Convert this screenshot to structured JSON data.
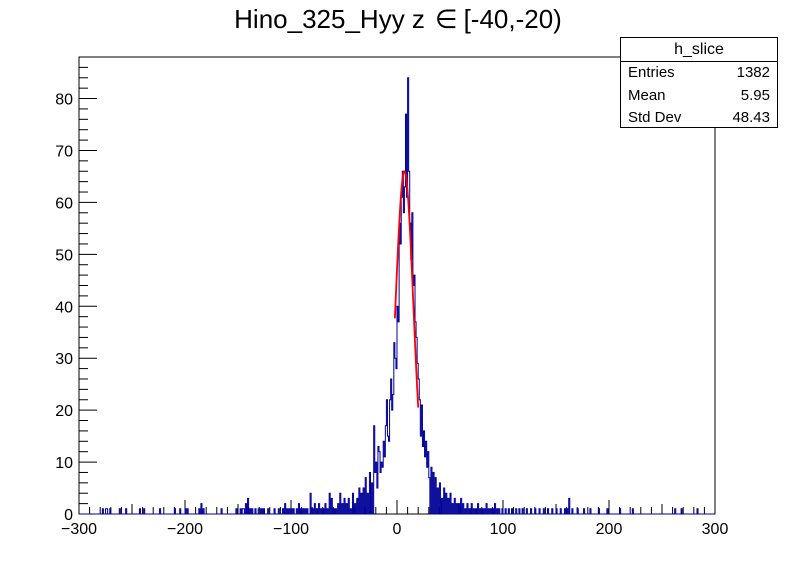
{
  "title": {
    "text": "Hino_325_Hyy z",
    "symbol": "∈",
    "range": "[-40,-20)"
  },
  "stats": {
    "name": "h_slice",
    "rows": [
      {
        "label": "Entries",
        "value": "1382"
      },
      {
        "label": "Mean",
        "value": "5.95"
      },
      {
        "label": "Std Dev",
        "value": "48.43"
      }
    ]
  },
  "colors": {
    "histogram": "#000099",
    "fit": "#ff0000",
    "axes": "#000000"
  },
  "chart_data": {
    "type": "histogram",
    "title": "Hino_325_Hyy z ∈ [-40,-20)",
    "xlabel": "",
    "ylabel": "",
    "xlim": [
      -300,
      300
    ],
    "ylim": [
      0,
      88
    ],
    "x_ticks": [
      -300,
      -200,
      -100,
      0,
      100,
      200,
      300
    ],
    "y_ticks": [
      0,
      10,
      20,
      30,
      40,
      50,
      60,
      70,
      80
    ],
    "bin_width": 1,
    "sparse_bins": [
      [
        -278,
        1
      ],
      [
        -275,
        1
      ],
      [
        -274,
        1
      ],
      [
        -271,
        1
      ],
      [
        -262,
        1
      ],
      [
        -256,
        1
      ],
      [
        -243,
        1
      ],
      [
        -239,
        1
      ],
      [
        -224,
        1
      ],
      [
        -210,
        1
      ],
      [
        -205,
        1
      ],
      [
        -200,
        1
      ],
      [
        -198,
        1
      ],
      [
        -187,
        1
      ],
      [
        -185,
        2
      ],
      [
        -183,
        1
      ],
      [
        -166,
        1
      ],
      [
        -152,
        1
      ],
      [
        -148,
        1
      ],
      [
        -146,
        1
      ],
      [
        -145,
        1
      ],
      [
        -143,
        2
      ],
      [
        -141,
        3
      ],
      [
        -139,
        1
      ],
      [
        -137,
        1
      ],
      [
        -134,
        1
      ],
      [
        -131,
        1
      ],
      [
        -130,
        1
      ],
      [
        -128,
        1
      ],
      [
        -126,
        1
      ],
      [
        -122,
        1
      ],
      [
        -116,
        1
      ],
      [
        -112,
        1
      ],
      [
        -108,
        1
      ],
      [
        -106,
        2
      ],
      [
        -104,
        1
      ],
      [
        -102,
        1
      ],
      [
        -100,
        1
      ],
      [
        -98,
        1
      ],
      [
        -95,
        1
      ],
      [
        -93,
        2
      ],
      [
        -91,
        1
      ],
      [
        -89,
        1
      ],
      [
        -87,
        1
      ],
      [
        -85,
        1
      ],
      [
        -82,
        4
      ],
      [
        -80,
        1
      ],
      [
        -78,
        2
      ],
      [
        -76,
        1
      ],
      [
        -74,
        2
      ],
      [
        -72,
        1
      ],
      [
        -70,
        1
      ],
      [
        -68,
        2
      ],
      [
        -66,
        1
      ],
      [
        -64,
        4
      ],
      [
        -62,
        3
      ],
      [
        -60,
        1
      ],
      [
        -58,
        1
      ],
      [
        -56,
        2
      ],
      [
        -54,
        4
      ],
      [
        -52,
        2
      ],
      [
        -50,
        3
      ],
      [
        -48,
        2
      ],
      [
        -46,
        3
      ],
      [
        -44,
        1
      ],
      [
        -42,
        4
      ],
      [
        -40,
        2
      ],
      [
        -38,
        3
      ],
      [
        -36,
        5
      ],
      [
        -34,
        4
      ],
      [
        -32,
        5
      ],
      [
        -30,
        7
      ],
      [
        -28,
        4
      ],
      [
        -26,
        8
      ],
      [
        -24,
        6
      ],
      [
        32,
        9
      ],
      [
        34,
        8
      ],
      [
        36,
        7
      ],
      [
        38,
        5
      ],
      [
        40,
        6
      ],
      [
        42,
        3
      ],
      [
        44,
        5
      ],
      [
        46,
        4
      ],
      [
        48,
        3
      ],
      [
        50,
        4
      ],
      [
        52,
        2
      ],
      [
        54,
        3
      ],
      [
        56,
        2
      ],
      [
        58,
        2
      ],
      [
        60,
        3
      ],
      [
        62,
        2
      ],
      [
        64,
        1
      ],
      [
        66,
        2
      ],
      [
        68,
        1
      ],
      [
        70,
        2
      ],
      [
        72,
        1
      ],
      [
        74,
        1
      ],
      [
        76,
        2
      ],
      [
        78,
        1
      ],
      [
        80,
        1
      ],
      [
        82,
        1
      ],
      [
        84,
        2
      ],
      [
        86,
        1
      ],
      [
        88,
        1
      ],
      [
        90,
        1
      ],
      [
        92,
        2
      ],
      [
        94,
        1
      ],
      [
        96,
        1
      ],
      [
        99,
        1
      ],
      [
        102,
        1
      ],
      [
        105,
        1
      ],
      [
        108,
        1
      ],
      [
        112,
        1
      ],
      [
        115,
        1
      ],
      [
        118,
        1
      ],
      [
        122,
        1
      ],
      [
        126,
        1
      ],
      [
        130,
        1
      ],
      [
        134,
        1
      ],
      [
        138,
        1
      ],
      [
        142,
        1
      ],
      [
        146,
        1
      ],
      [
        150,
        1
      ],
      [
        154,
        1
      ],
      [
        158,
        1
      ],
      [
        160,
        1
      ],
      [
        162,
        3
      ],
      [
        165,
        1
      ],
      [
        170,
        1
      ],
      [
        176,
        1
      ],
      [
        182,
        1
      ],
      [
        190,
        1
      ],
      [
        198,
        1
      ],
      [
        210,
        1
      ],
      [
        222,
        1
      ],
      [
        262,
        1
      ],
      [
        268,
        1
      ],
      [
        283,
        1
      ]
    ],
    "core_bins": [
      [
        -22,
        17
      ],
      [
        -21,
        8
      ],
      [
        -20,
        10
      ],
      [
        -19,
        5
      ],
      [
        -18,
        13
      ],
      [
        -17,
        12
      ],
      [
        -16,
        8
      ],
      [
        -15,
        10
      ],
      [
        -14,
        9
      ],
      [
        -13,
        14
      ],
      [
        -12,
        11
      ],
      [
        -11,
        17
      ],
      [
        -10,
        22
      ],
      [
        -9,
        15
      ],
      [
        -8,
        14
      ],
      [
        -7,
        22
      ],
      [
        -6,
        26
      ],
      [
        -5,
        20
      ],
      [
        -4,
        23
      ],
      [
        -3,
        33
      ],
      [
        -2,
        30
      ],
      [
        -1,
        28
      ],
      [
        0,
        40
      ],
      [
        1,
        37
      ],
      [
        2,
        56
      ],
      [
        3,
        52
      ],
      [
        4,
        61
      ],
      [
        5,
        66
      ],
      [
        6,
        58
      ],
      [
        7,
        63
      ],
      [
        8,
        77
      ],
      [
        9,
        61
      ],
      [
        10,
        84
      ],
      [
        11,
        66
      ],
      [
        12,
        56
      ],
      [
        13,
        49
      ],
      [
        14,
        58
      ],
      [
        15,
        44
      ],
      [
        16,
        46
      ],
      [
        17,
        37
      ],
      [
        18,
        34
      ],
      [
        19,
        29
      ],
      [
        20,
        26
      ],
      [
        21,
        22
      ],
      [
        22,
        15
      ],
      [
        23,
        21
      ],
      [
        24,
        13
      ],
      [
        25,
        16
      ],
      [
        26,
        11
      ],
      [
        27,
        14
      ],
      [
        28,
        9
      ],
      [
        29,
        12
      ],
      [
        30,
        7
      ]
    ],
    "fit": {
      "type": "gaus",
      "mean": 7,
      "sigma": 8.5,
      "constant": 66,
      "xmin": -2,
      "xmax": 20
    }
  }
}
